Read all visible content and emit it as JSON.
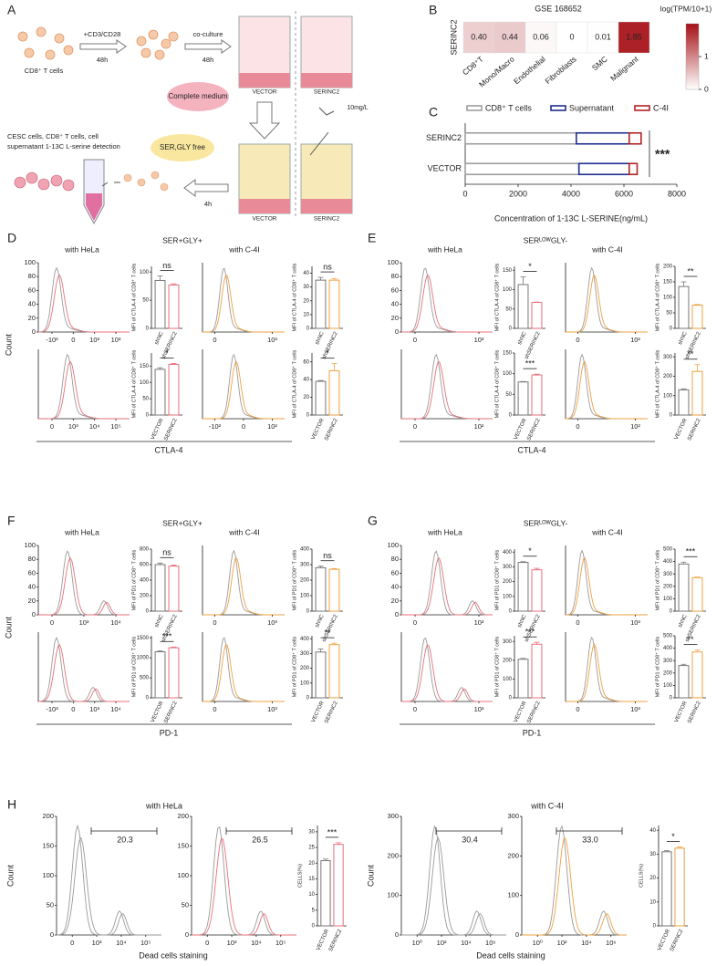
{
  "figure": {
    "panel_labels": [
      "A",
      "B",
      "C",
      "D",
      "E",
      "F",
      "G",
      "H"
    ],
    "schematic": {
      "stim": "+CD3/CD28",
      "stim_time": "48h",
      "cells": "CD8⁺ T cells",
      "coculture": "co-culture",
      "coculture_time": "48h",
      "wells": [
        "VECTOR",
        "SERINC2"
      ],
      "medium": "Complete medium",
      "dose": "10mg/L",
      "detection": [
        "CESC cells, CD8⁺ T cells, cell",
        "supernatant 1-13C L-serine detection"
      ],
      "free_medium": "SER,GLY free",
      "time2": "4h",
      "wells2": [
        "VECTOR",
        "SERINC2"
      ]
    }
  },
  "panels": [
    {
      "label": "D",
      "condition": "SER+GLY+",
      "columns": [
        "with HeLa",
        "with C-4I"
      ],
      "marker": "CTLA-4",
      "count_label": "Count",
      "hist_yticks": [
        0,
        20,
        40,
        60,
        80,
        100
      ],
      "hist_x_labels": [
        [
          "-10²",
          "0",
          "10²",
          "10³"
        ],
        [
          "0",
          "10³"
        ],
        [
          "0",
          "10³",
          "10⁴",
          "10⁵"
        ],
        [
          "-10²",
          "0",
          "10²"
        ]
      ]
    },
    {
      "label": "E",
      "condition": "SERᴸᴼᵂGLY-",
      "columns": [
        "with HeLa",
        "with C-4I"
      ],
      "marker": "CTLA-4",
      "hist_yticks": [
        0,
        20,
        40,
        60,
        80,
        100
      ],
      "hist_x_labels": [
        [
          "0",
          "10³"
        ],
        [
          "0",
          "10²"
        ],
        [
          "0",
          "10²"
        ],
        [
          "0",
          "10²"
        ]
      ]
    },
    {
      "label": "F",
      "condition": "SER+GLY+",
      "columns": [
        "with HeLa",
        "with C-4I"
      ],
      "marker": "PD-1",
      "count_label": "Count",
      "hist_yticks": [
        0,
        20,
        40,
        60,
        80,
        100
      ],
      "hist_x_labels": [
        [
          "0",
          "10³",
          "10⁴"
        ],
        [
          "0",
          "10³"
        ],
        [
          "-10³",
          "0",
          "10³",
          "10⁴"
        ],
        [
          "0",
          "10³"
        ]
      ]
    },
    {
      "label": "G",
      "condition": "SERᴸᴼᵂGLY-",
      "columns": [
        "with HeLa",
        "with C-4I"
      ],
      "marker": "PD-1",
      "hist_yticks": [
        0,
        20,
        40,
        60,
        80,
        100
      ],
      "hist_x_labels": [
        [
          "0",
          "10³"
        ],
        [
          "0",
          "10³"
        ],
        [
          "0",
          "10³"
        ],
        [
          "0",
          "10³"
        ]
      ]
    },
    {
      "label": "H",
      "columns": [
        "with HeLa",
        "with C-4I"
      ],
      "marker": "Dead cells staining",
      "hist_yticks": [
        [
          0,
          50,
          100,
          150,
          200
        ],
        [
          0,
          50,
          100,
          150,
          200
        ],
        [
          0,
          100,
          200,
          300
        ],
        [
          0,
          100,
          200,
          300
        ]
      ],
      "hist_x_labels": [
        [
          "0",
          "10³",
          "10⁴",
          "10⁵"
        ],
        [
          "0",
          "10³",
          "10⁴",
          "10⁵"
        ],
        [
          "10⁰",
          "10²",
          "10⁴",
          "10⁶"
        ],
        [
          "10⁰",
          "10²",
          "10⁴",
          "10⁶"
        ]
      ],
      "count_label": "Count",
      "gates": [
        "20.3",
        "26.5",
        "30.4",
        "33.0"
      ]
    }
  ],
  "chart_data": [
    {
      "type": "heatmap",
      "title": "GSE 168652",
      "row_label": "SERINC2",
      "colorbar_title": "log(TPM/10+1)",
      "categories": [
        "CD8⁺T",
        "Mono/Macro",
        "Endothelial",
        "Fibroblasts",
        "SMC",
        "Malignant"
      ],
      "values": [
        0.4,
        0.44,
        0.06,
        0,
        0.01,
        1.85
      ],
      "value_labels": [
        "0.40",
        "0.44",
        "0.06",
        "0",
        "0.01",
        "1.85"
      ],
      "zlim": [
        0,
        2
      ],
      "zticks": [
        0,
        1
      ],
      "colors": [
        "#ffffff",
        "#a50f15"
      ]
    },
    {
      "type": "stacked-hbar",
      "categories": [
        "SERINC2",
        "VECTOR"
      ],
      "series": [
        {
          "name": "CD8⁺ T cells",
          "color": "#9e9e9e",
          "values": [
            4200,
            4300
          ]
        },
        {
          "name": "Supernatant",
          "color": "#1f2f8f",
          "values": [
            2000,
            1900
          ]
        },
        {
          "name": "C-4I",
          "color": "#b22222",
          "values": [
            450,
            300
          ]
        }
      ],
      "xlim": [
        0,
        8000
      ],
      "xticks": [
        0,
        2000,
        4000,
        6000,
        8000
      ],
      "xlabel": "Concentration of 1-13C L-SERINE(ng/mL)",
      "annotation": "***"
    },
    {
      "type": "bar",
      "ylabel": "MFI of CTLA-4 of CD8⁺ T cells",
      "categories": [
        "shNC",
        "shSERINC2"
      ],
      "values": [
        85,
        77
      ],
      "errors": [
        8,
        2
      ],
      "ylim": [
        0,
        110
      ],
      "yticks": [
        0,
        50,
        100
      ],
      "significance": "ns",
      "colors": [
        "#777777",
        "#e8707a"
      ]
    },
    {
      "type": "bar",
      "ylabel": "MFI of CTLA-4 of CD8⁺ T cells",
      "categories": [
        "shNC",
        "shSERINC2"
      ],
      "values": [
        35,
        35
      ],
      "errors": [
        2,
        1
      ],
      "ylim": [
        0,
        45
      ],
      "yticks": [
        0,
        10,
        20,
        30,
        40
      ],
      "significance": "ns",
      "colors": [
        "#777777",
        "#f0a040"
      ]
    },
    {
      "type": "bar",
      "ylabel": "MFI of CTLA-4 of CD8⁺ T cells",
      "categories": [
        "VECTOR",
        "SERINC2"
      ],
      "values": [
        140,
        155
      ],
      "errors": [
        5,
        3
      ],
      "ylim": [
        0,
        190
      ],
      "yticks": [
        0,
        50,
        100,
        150
      ],
      "significance": "*",
      "colors": [
        "#777777",
        "#e8707a"
      ]
    },
    {
      "type": "bar",
      "ylabel": "MFI of CTLA-4 of CD8⁺ T cells",
      "categories": [
        "VECTOR",
        "SERINC2"
      ],
      "values": [
        38,
        50
      ],
      "errors": [
        1,
        8
      ],
      "ylim": [
        0,
        70
      ],
      "yticks": [
        0,
        20,
        40,
        60
      ],
      "significance": "*",
      "colors": [
        "#777777",
        "#f0a040"
      ]
    },
    {
      "type": "bar",
      "ylabel": "MFI of CTLA-4 of CD8⁺ T cells",
      "categories": [
        "shNC",
        "shSERINC2"
      ],
      "values": [
        113,
        67
      ],
      "errors": [
        20,
        1
      ],
      "ylim": [
        0,
        160
      ],
      "yticks": [
        0,
        50,
        100,
        150
      ],
      "significance": "*",
      "colors": [
        "#777777",
        "#e8707a"
      ]
    },
    {
      "type": "bar",
      "ylabel": "MFI of CTLA-4 of CD8⁺ T cells",
      "categories": [
        "shNC",
        "shSERINC2"
      ],
      "values": [
        135,
        75
      ],
      "errors": [
        15,
        2
      ],
      "ylim": [
        0,
        200
      ],
      "yticks": [
        0,
        50,
        100,
        150,
        200
      ],
      "significance": "**",
      "colors": [
        "#777777",
        "#f0a040"
      ]
    },
    {
      "type": "bar",
      "ylabel": "MFI of CTLA-4 of CD8⁺ T cells",
      "categories": [
        "VECTOR",
        "SERINC2"
      ],
      "values": [
        80,
        97
      ],
      "errors": [
        1,
        2
      ],
      "ylim": [
        0,
        150
      ],
      "yticks": [
        0,
        50,
        100,
        150
      ],
      "significance": "***",
      "colors": [
        "#777777",
        "#e8707a"
      ]
    },
    {
      "type": "bar",
      "ylabel": "MFI of CTLA-4 of CD8⁺ T cells",
      "categories": [
        "VECTOR",
        "SERINC2"
      ],
      "values": [
        130,
        225
      ],
      "errors": [
        5,
        35
      ],
      "ylim": [
        0,
        320
      ],
      "yticks": [
        0,
        100,
        200,
        300
      ],
      "significance": "**",
      "colors": [
        "#777777",
        "#f0a040"
      ]
    },
    {
      "type": "bar",
      "ylabel": "MFI of PD1 of CD8⁺ T cells",
      "categories": [
        "shNC",
        "shSERINC2"
      ],
      "values": [
        600,
        580
      ],
      "errors": [
        20,
        15
      ],
      "ylim": [
        0,
        800
      ],
      "yticks": [
        0,
        200,
        400,
        600,
        800
      ],
      "significance": "ns",
      "colors": [
        "#777777",
        "#e8707a"
      ]
    },
    {
      "type": "bar",
      "ylabel": "MFI of PD1 of CD8⁺ T cells",
      "categories": [
        "shNC",
        "shSERINC2"
      ],
      "values": [
        280,
        270
      ],
      "errors": [
        10,
        5
      ],
      "ylim": [
        0,
        400
      ],
      "yticks": [
        0,
        100,
        200,
        300,
        400
      ],
      "significance": "ns",
      "colors": [
        "#777777",
        "#f0a040"
      ]
    },
    {
      "type": "bar",
      "ylabel": "MFI of PD1 of CD8⁺ T cells",
      "categories": [
        "VECTOR",
        "SERINC2"
      ],
      "values": [
        1150,
        1250
      ],
      "errors": [
        20,
        20
      ],
      "ylim": [
        0,
        1550
      ],
      "yticks": [
        0,
        500,
        1000,
        1500
      ],
      "significance": "***",
      "colors": [
        "#777777",
        "#e8707a"
      ]
    },
    {
      "type": "bar",
      "ylabel": "MFI of PD1 of CD8⁺ T cells",
      "categories": [
        "VECTOR",
        "SERINC2"
      ],
      "values": [
        310,
        360
      ],
      "errors": [
        20,
        10
      ],
      "ylim": [
        0,
        420
      ],
      "yticks": [
        0,
        100,
        200,
        300,
        400
      ],
      "significance": "**",
      "colors": [
        "#777777",
        "#f0a040"
      ]
    },
    {
      "type": "bar",
      "ylabel": "MFI of PD1 of CD8⁺ T cells",
      "categories": [
        "shNC",
        "shSERINC2"
      ],
      "values": [
        330,
        280
      ],
      "errors": [
        5,
        10
      ],
      "ylim": [
        0,
        420
      ],
      "yticks": [
        0,
        100,
        200,
        300,
        400
      ],
      "significance": "*",
      "colors": [
        "#777777",
        "#e8707a"
      ]
    },
    {
      "type": "bar",
      "ylabel": "MFI of PD1 of CD8⁺ T cells",
      "categories": [
        "shNC",
        "shSERINC2"
      ],
      "values": [
        380,
        270
      ],
      "errors": [
        15,
        5
      ],
      "ylim": [
        0,
        500
      ],
      "yticks": [
        0,
        100,
        200,
        300,
        400,
        500
      ],
      "significance": "***",
      "colors": [
        "#777777",
        "#f0a040"
      ]
    },
    {
      "type": "bar",
      "ylabel": "MFI of PD1 of CD8⁺ T cells",
      "categories": [
        "VECTOR",
        "SERINC2"
      ],
      "values": [
        205,
        285
      ],
      "errors": [
        5,
        10
      ],
      "ylim": [
        0,
        330
      ],
      "yticks": [
        0,
        100,
        200,
        300
      ],
      "significance": "***",
      "colors": [
        "#777777",
        "#e8707a"
      ]
    },
    {
      "type": "bar",
      "ylabel": "MFI of PD1 of CD8⁺ T cells",
      "categories": [
        "VECTOR",
        "SERINC2"
      ],
      "values": [
        260,
        370
      ],
      "errors": [
        10,
        15
      ],
      "ylim": [
        0,
        500
      ],
      "yticks": [
        0,
        100,
        200,
        300,
        400,
        500
      ],
      "significance": "**",
      "colors": [
        "#777777",
        "#f0a040"
      ]
    },
    {
      "type": "bar",
      "ylabel": "CELLS(%)",
      "categories": [
        "VECTOR",
        "SERINC2"
      ],
      "values": [
        20.8,
        26
      ],
      "errors": [
        0.5,
        0.5
      ],
      "ylim": [
        0,
        32
      ],
      "yticks": [
        0,
        5,
        10,
        15,
        20,
        25,
        30
      ],
      "significance": "***",
      "colors": [
        "#777777",
        "#e8707a"
      ]
    },
    {
      "type": "bar",
      "ylabel": "CELLS(%)",
      "categories": [
        "VECTOR",
        "SERINC2"
      ],
      "values": [
        31,
        32.5
      ],
      "errors": [
        0.5,
        0.5
      ],
      "ylim": [
        0,
        42
      ],
      "yticks": [
        0,
        10,
        20,
        30,
        40
      ],
      "significance": "*",
      "colors": [
        "#777777",
        "#f0a040"
      ]
    }
  ]
}
